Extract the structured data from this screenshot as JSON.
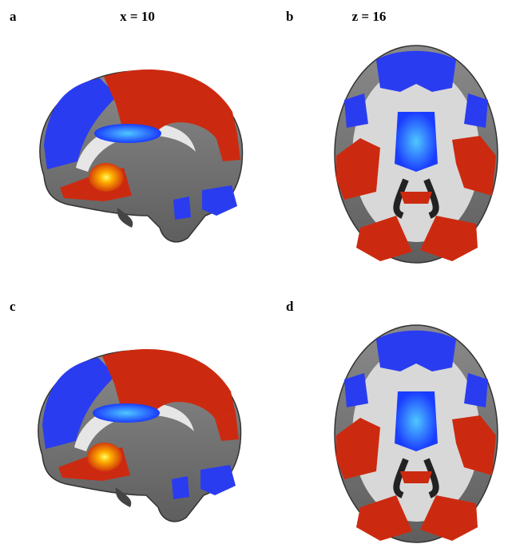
{
  "panels": [
    {
      "label": "a",
      "title": "x = 10"
    },
    {
      "label": "b",
      "title": "z = 16"
    },
    {
      "label": "c"
    },
    {
      "label": "d"
    }
  ]
}
